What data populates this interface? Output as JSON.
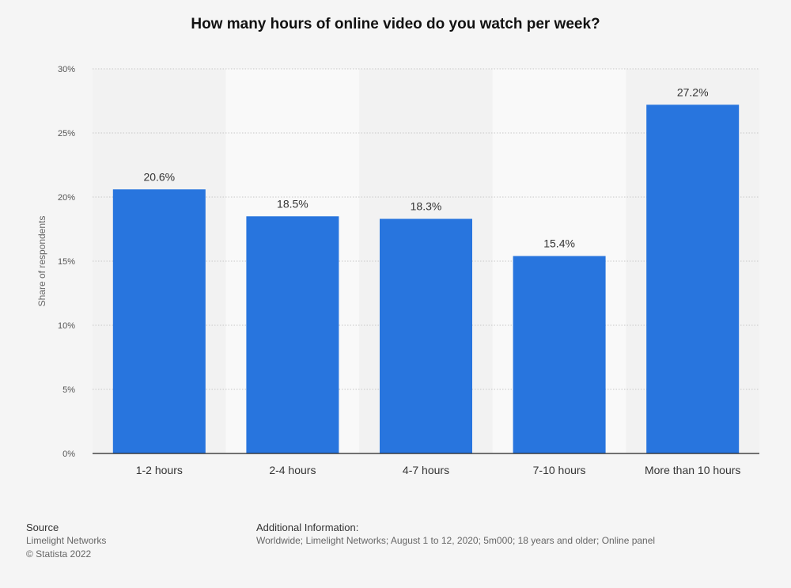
{
  "chart_data": {
    "type": "bar",
    "title": "How many hours of online video do you watch per week?",
    "ylabel": "Share of respondents",
    "xlabel": "",
    "categories": [
      "1-2 hours",
      "2-4 hours",
      "4-7 hours",
      "7-10 hours",
      "More than 10 hours"
    ],
    "values": [
      20.6,
      18.5,
      18.3,
      15.4,
      27.2
    ],
    "value_labels": [
      "20.6%",
      "18.5%",
      "18.3%",
      "15.4%",
      "27.2%"
    ],
    "ylim": [
      0,
      30
    ],
    "yticks": [
      0,
      5,
      10,
      15,
      20,
      25,
      30
    ],
    "ytick_labels": [
      "0%",
      "5%",
      "10%",
      "15%",
      "20%",
      "25%",
      "30%"
    ],
    "bar_color": "#2875de",
    "grid": true,
    "legend": "none"
  },
  "footer": {
    "source_heading": "Source",
    "source_name": "Limelight Networks",
    "copyright": "© Statista 2022",
    "info_heading": "Additional Information:",
    "info_text": "Worldwide; Limelight Networks; August 1 to 12, 2020; 5m000; 18 years and older; Online panel"
  }
}
